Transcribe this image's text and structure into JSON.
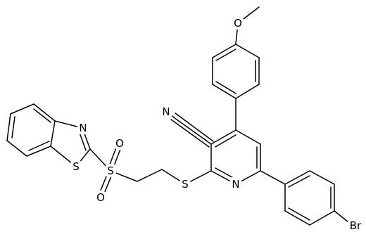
{
  "atoms": [
    {
      "label": "O"
    },
    {
      "label": "N"
    },
    {
      "label": "N"
    },
    {
      "label": "S"
    },
    {
      "label": "S"
    },
    {
      "label": "O"
    },
    {
      "label": "O"
    },
    {
      "label": "S"
    },
    {
      "label": "N"
    },
    {
      "label": "Br"
    }
  ]
}
